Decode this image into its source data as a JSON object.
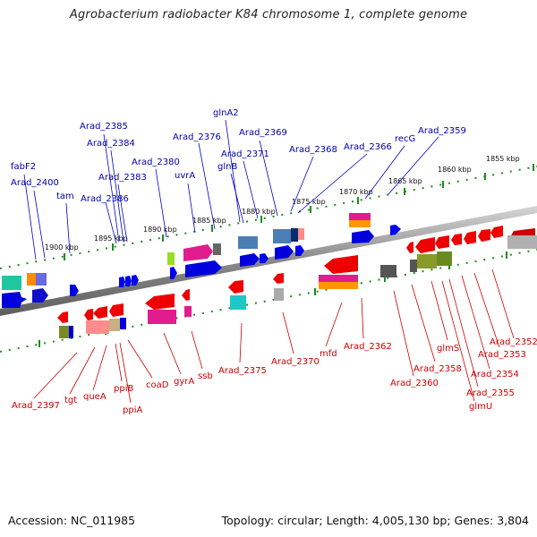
{
  "title": "Agrobacterium radiobacter K84 chromosome 1, complete genome",
  "footer": {
    "accession": "Accession: NC_011985",
    "summary": "Topology: circular; Length: 4,005,130 bp; Genes: 3,804"
  },
  "colors": {
    "plus_strand_label": "#0000aa",
    "minus_strand_label": "#cc0000",
    "backbone": "#8a8a8a",
    "tick": "#1f8a1f"
  },
  "ruler": [
    "1855 kbp",
    "1860 kbp",
    "1865 kbp",
    "1870 kbp",
    "1875 kbp",
    "1880 kbp",
    "1885 kbp",
    "1890 kbp",
    "1895 kbp",
    "1900 kbp"
  ],
  "top_labels": [
    "Arad_2385",
    "Arad_2384",
    "Arad_2383",
    "Arad_2386",
    "tam",
    "fabF2",
    "Arad_2400",
    "Arad_2380",
    "uvrA",
    "Arad_2376",
    "glnA2",
    "glnB",
    "Arad_2371",
    "Arad_2369",
    "Arad_2368",
    "Arad_2366",
    "recG",
    "Arad_2359"
  ],
  "bottom_labels": [
    "Arad_2397",
    "tgt",
    "queA",
    "ppiB",
    "ppiA",
    "coaD",
    "gyrA",
    "ssb",
    "Arad_2375",
    "Arad_2370",
    "mfd",
    "Arad_2362",
    "Arad_2360",
    "Arad_2358",
    "glmS",
    "Arad_2354",
    "Arad_2355",
    "glmU",
    "Arad_2353",
    "Arad_2352"
  ]
}
